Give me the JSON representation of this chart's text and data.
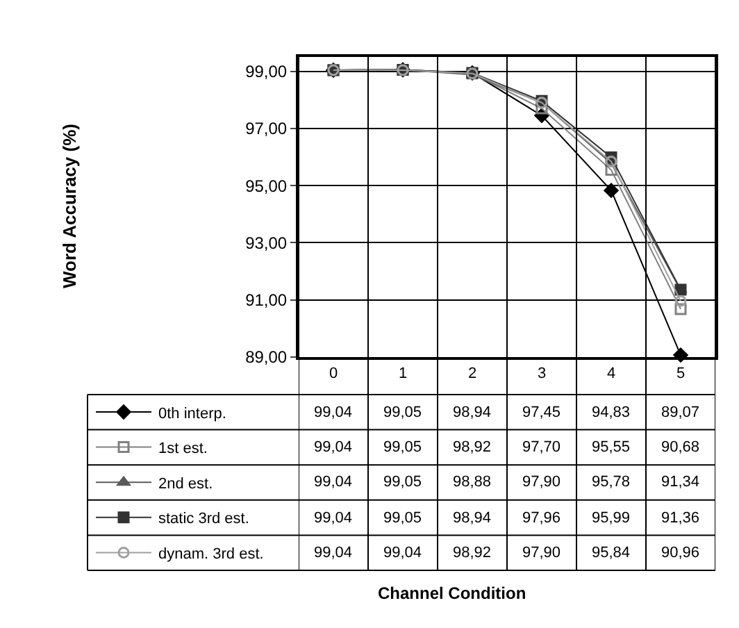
{
  "chart_data": {
    "type": "line",
    "annotations": [
      "Word Accuracy (%)",
      "Channel Condition"
    ],
    "categories": [
      "0",
      "1",
      "2",
      "3",
      "4",
      "5"
    ],
    "series": [
      {
        "name": "0th interp.",
        "color": "#000000",
        "marker": "diamond",
        "values": [
          99.04,
          99.05,
          98.94,
          97.45,
          94.83,
          89.07
        ],
        "value_labels": [
          "99,04",
          "99,05",
          "98,94",
          "97,45",
          "94,83",
          "89,07"
        ]
      },
      {
        "name": "1st est.",
        "color": "#808080",
        "marker": "square-open",
        "values": [
          99.04,
          99.05,
          98.92,
          97.7,
          95.55,
          90.68
        ],
        "value_labels": [
          "99,04",
          "99,05",
          "98,92",
          "97,70",
          "95,55",
          "90,68"
        ]
      },
      {
        "name": "2nd est.",
        "color": "#5a5a5a",
        "marker": "triangle",
        "values": [
          99.04,
          99.05,
          98.88,
          97.9,
          95.78,
          91.34
        ],
        "value_labels": [
          "99,04",
          "99,05",
          "98,88",
          "97,90",
          "95,78",
          "91,34"
        ]
      },
      {
        "name": "static 3rd est.",
        "color": "#333333",
        "marker": "square",
        "values": [
          99.04,
          99.05,
          98.94,
          97.96,
          95.99,
          91.36
        ],
        "value_labels": [
          "99,04",
          "99,05",
          "98,94",
          "97,96",
          "95,99",
          "91,36"
        ]
      },
      {
        "name": "dynam. 3rd est.",
        "color": "#a0a0a0",
        "marker": "circle-open",
        "values": [
          99.04,
          99.04,
          98.92,
          97.9,
          95.84,
          90.96
        ],
        "value_labels": [
          "99,04",
          "99,04",
          "98,92",
          "97,90",
          "95,84",
          "90,96"
        ]
      }
    ],
    "ylim": [
      89,
      99.5
    ],
    "yticks": [
      {
        "value": 89,
        "label": "89,00"
      },
      {
        "value": 91,
        "label": "91,00"
      },
      {
        "value": 93,
        "label": "93,00"
      },
      {
        "value": 95,
        "label": "95,00"
      },
      {
        "value": 97,
        "label": "97,00"
      },
      {
        "value": 99,
        "label": "99,00"
      }
    ],
    "grid": "y",
    "legend": "bottom left",
    "line_style": "solid"
  }
}
